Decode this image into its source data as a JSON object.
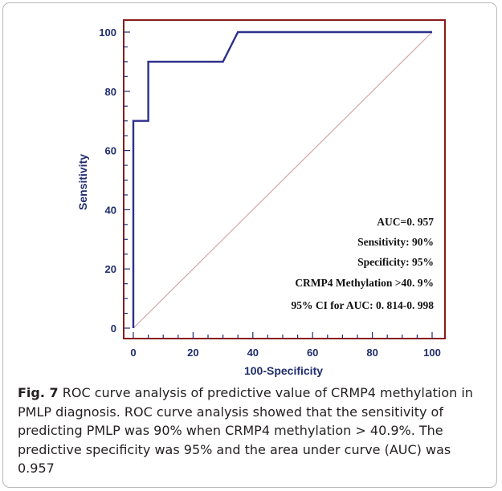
{
  "chart_data": {
    "type": "line",
    "title": "",
    "xlabel": "100-Specificity",
    "ylabel": "Sensitivity",
    "xlim": [
      0,
      100
    ],
    "ylim": [
      0,
      100
    ],
    "x_ticks": [
      "0",
      "20",
      "40",
      "60",
      "80",
      "100"
    ],
    "y_ticks": [
      "0",
      "20",
      "40",
      "60",
      "80",
      "100"
    ],
    "grid": false,
    "series": [
      {
        "name": "",
        "color": "#2e2f8c",
        "x": [
          0,
          0,
          5,
          5,
          30,
          35,
          100
        ],
        "y": [
          0,
          70,
          70,
          90,
          90,
          100,
          100
        ]
      },
      {
        "name": "",
        "color": "#d6a6a6",
        "x": [
          0,
          100
        ],
        "y": [
          0,
          100
        ]
      }
    ],
    "annotations": [
      "AUC=0. 957",
      "Sensitivity: 90%",
      "Specificity: 95%",
      "CRMP4 Methylation >40. 9%",
      "95% CI for AUC: 0. 814-0. 998"
    ],
    "frame_color": "#8b1a1a",
    "axis_color": "#1f2d6e"
  },
  "caption": {
    "label": "Fig. 7",
    "text": "ROC curve analysis of predictive value of CRMP4 methylation in PMLP diagnosis. ROC curve analysis showed that the sensitivity of predicting PMLP was 90% when CRMP4 methylation > 40.9%. The predictive specificity was 95% and the area under curve (AUC) was 0.957"
  }
}
